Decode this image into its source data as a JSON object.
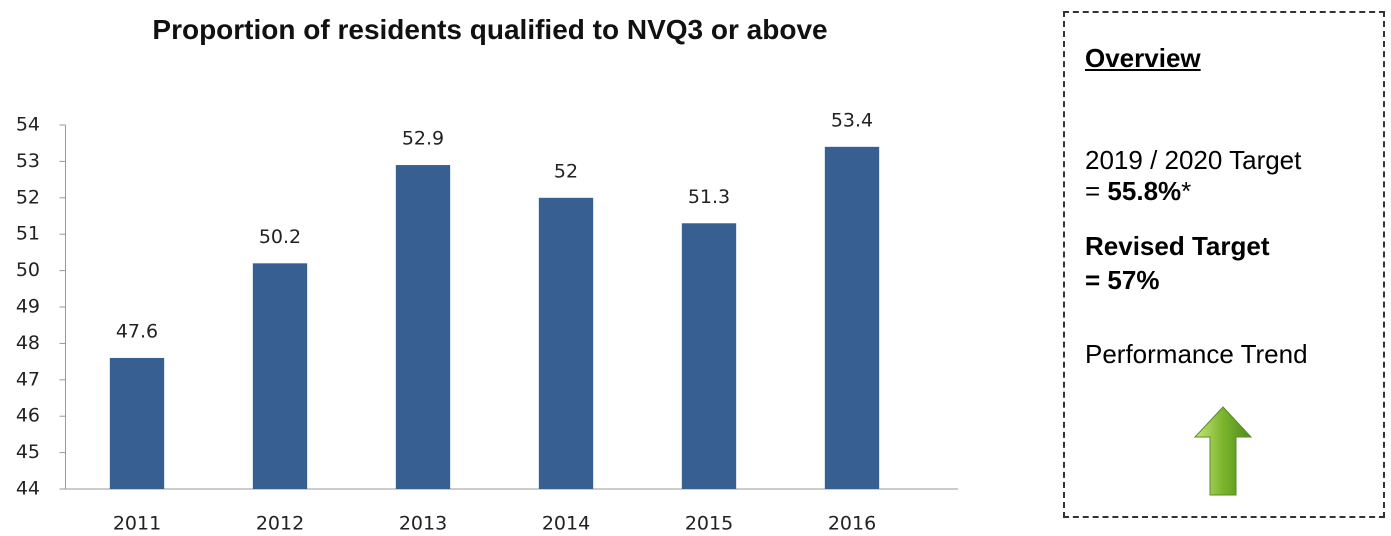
{
  "chart_data": {
    "type": "bar",
    "title": "Proportion of residents qualified to NVQ3 or above",
    "categories": [
      "2011",
      "2012",
      "2013",
      "2014",
      "2015",
      "2016"
    ],
    "values": [
      47.6,
      50.2,
      52.9,
      52,
      51.3,
      53.4
    ],
    "color": "#375f91",
    "ylim": [
      44,
      54
    ],
    "yticks": [
      44,
      45,
      46,
      47,
      48,
      49,
      50,
      51,
      52,
      53,
      54
    ],
    "grid": false
  },
  "overview": {
    "heading": "Overview",
    "target_label": "2019 / 2020 Target",
    "target_prefix": "=",
    "target_value": "55.8%",
    "target_note": "*",
    "revised_label": "Revised Target",
    "revised_value": "= 57%",
    "trend_label": "Performance Trend"
  }
}
